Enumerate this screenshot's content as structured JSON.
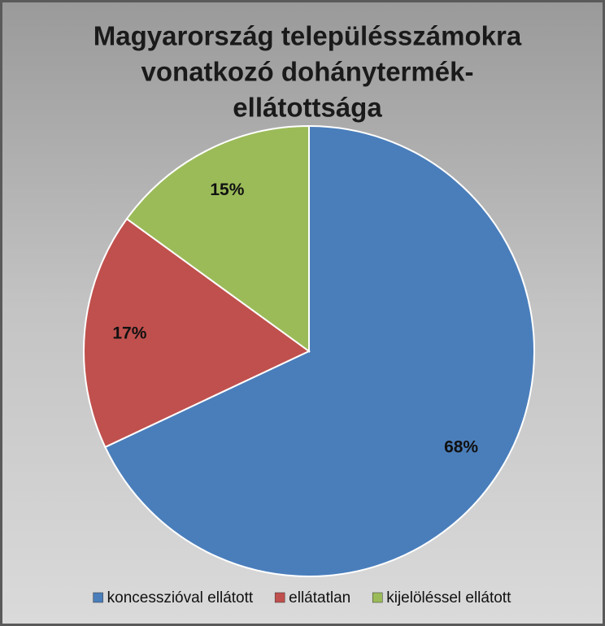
{
  "chart_data": {
    "type": "pie",
    "title": [
      "Magyarország településszámokra",
      "vonatkozó dohánytermék-",
      "ellátottsága"
    ],
    "categories": [
      "koncesszióval ellátott",
      "ellátatlan",
      "kijelöléssel ellátott"
    ],
    "values": [
      68,
      17,
      15
    ],
    "value_labels": [
      "68%",
      "17%",
      "15%"
    ],
    "colors": [
      "#4a7ebb",
      "#c0504d",
      "#9bbb59"
    ],
    "legend": "bottom"
  }
}
